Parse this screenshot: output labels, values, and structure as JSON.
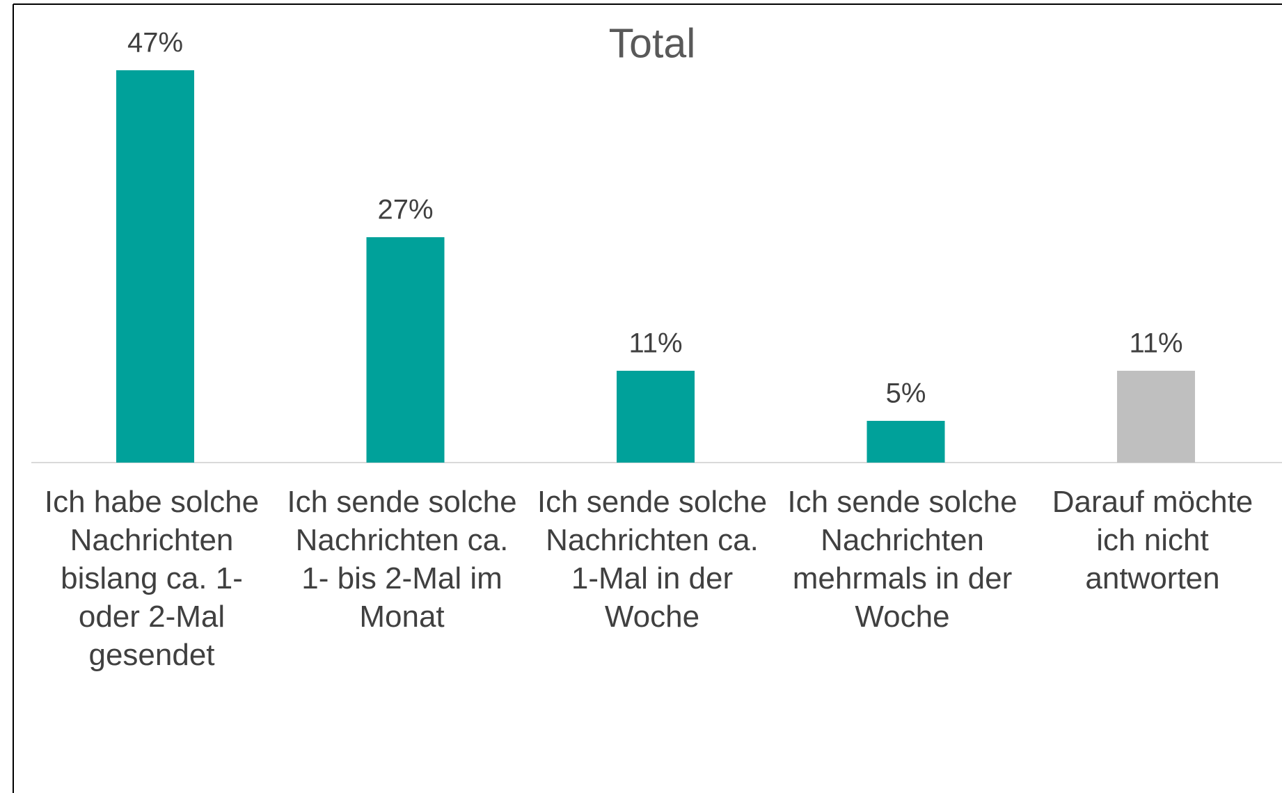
{
  "chart_data": {
    "type": "bar",
    "title": "Total",
    "categories": [
      "Ich habe solche Nachrichten bislang ca. 1- oder 2-Mal gesendet",
      "Ich sende solche Nachrichten ca. 1- bis 2-Mal im Monat",
      "Ich sende solche Nachrichten ca. 1-Mal in der Woche",
      "Ich sende solche Nachrichten mehrmals in der Woche",
      "Darauf möchte ich nicht antworten"
    ],
    "values": [
      47,
      27,
      11,
      5,
      11
    ],
    "value_labels": [
      "47%",
      "27%",
      "11%",
      "5%",
      "11%"
    ],
    "colors": [
      "#00a19a",
      "#00a19a",
      "#00a19a",
      "#00a19a",
      "#bfbfbf"
    ]
  }
}
